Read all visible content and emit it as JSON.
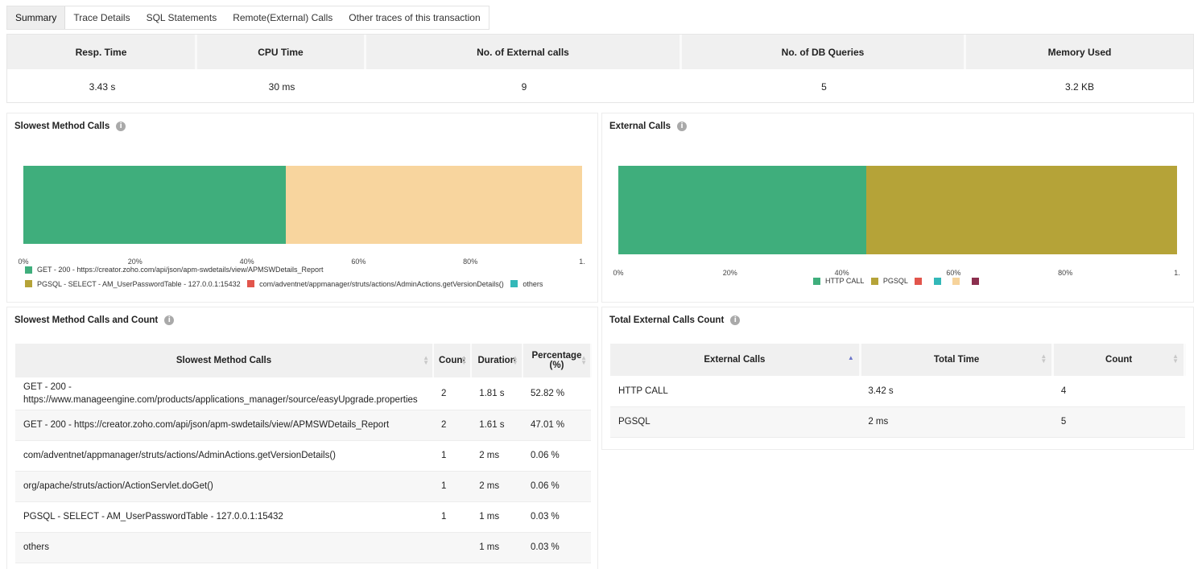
{
  "tabs": [
    {
      "label": "Summary",
      "active": true
    },
    {
      "label": "Trace Details"
    },
    {
      "label": "SQL Statements"
    },
    {
      "label": "Remote(External) Calls"
    },
    {
      "label": "Other traces of this transaction"
    }
  ],
  "summary": {
    "headers": [
      "Resp. Time",
      "CPU Time",
      "No. of External calls",
      "No. of DB Queries",
      "Memory Used"
    ],
    "values": [
      "3.43 s",
      "30 ms",
      "9",
      "5",
      "3.2 KB"
    ]
  },
  "slowest_chart": {
    "title": "Slowest Method Calls",
    "ticks": [
      "0%",
      "20%",
      "40%",
      "60%",
      "80%",
      "1."
    ],
    "legend": [
      {
        "label": "GET - 200 - https://creator.zoho.com/api/json/apm-swdetails/view/APMSWDetails_Report",
        "color": "#3fae7c"
      },
      {
        "label": "PGSQL - SELECT - AM_UserPasswordTable - 127.0.0.1:15432",
        "color": "#b5a338"
      },
      {
        "label": "com/adventnet/appmanager/struts/actions/AdminActions.getVersionDetails()",
        "color": "#e2554c"
      },
      {
        "label": "others",
        "color": "#33b8b8"
      }
    ]
  },
  "external_chart": {
    "title": "External Calls",
    "ticks": [
      "0%",
      "20%",
      "40%",
      "60%",
      "80%",
      "1."
    ],
    "legend": [
      {
        "label": "HTTP CALL",
        "color": "#3fae7c"
      },
      {
        "label": "PGSQL",
        "color": "#b5a338"
      },
      {
        "label": "",
        "color": "#e2554c"
      },
      {
        "label": "",
        "color": "#33b8b8"
      },
      {
        "label": "",
        "color": "#f6d39b"
      },
      {
        "label": "",
        "color": "#8b2f4e"
      }
    ]
  },
  "chart_data": [
    {
      "type": "bar",
      "stacked": true,
      "orientation": "horizontal",
      "title": "Slowest Method Calls",
      "xlim": [
        0,
        1
      ],
      "series": [
        {
          "name": "GET - 200 - https://creator.zoho.com/api/json/apm-swdetails/view/APMSWDetails_Report",
          "values": [
            0.4701
          ]
        },
        {
          "name": "others",
          "values": [
            0.5299
          ]
        }
      ],
      "segment_colors": [
        "#3fae7c",
        "#f8d59e"
      ]
    },
    {
      "type": "bar",
      "stacked": true,
      "orientation": "horizontal",
      "title": "External Calls",
      "xlim": [
        0,
        1
      ],
      "series": [
        {
          "name": "HTTP CALL",
          "values": [
            0.444
          ]
        },
        {
          "name": "PGSQL",
          "values": [
            0.556
          ]
        }
      ],
      "segment_colors": [
        "#3fae7c",
        "#b5a338"
      ]
    }
  ],
  "methods_table": {
    "title": "Slowest Method Calls and Count",
    "headers": [
      "Slowest Method Calls",
      "Count",
      "Duration",
      "Percentage (%)"
    ],
    "rows": [
      {
        "call": "GET - 200 - https://www.manageengine.com/products/applications_manager/source/easyUpgrade.properties",
        "count": "2",
        "duration": "1.81 s",
        "pct": "52.82 %"
      },
      {
        "call": "GET - 200 - https://creator.zoho.com/api/json/apm-swdetails/view/APMSWDetails_Report",
        "count": "2",
        "duration": "1.61 s",
        "pct": "47.01 %"
      },
      {
        "call": "com/adventnet/appmanager/struts/actions/AdminActions.getVersionDetails()",
        "count": "1",
        "duration": "2 ms",
        "pct": "0.06 %"
      },
      {
        "call": "org/apache/struts/action/ActionServlet.doGet()",
        "count": "1",
        "duration": "2 ms",
        "pct": "0.06 %"
      },
      {
        "call": "PGSQL - SELECT - AM_UserPasswordTable - 127.0.0.1:15432",
        "count": "1",
        "duration": "1 ms",
        "pct": "0.03 %"
      },
      {
        "call": "others",
        "count": "",
        "duration": "1 ms",
        "pct": "0.03 %"
      }
    ]
  },
  "external_table": {
    "title": "Total External Calls Count",
    "headers": [
      "External Calls",
      "Total Time",
      "Count"
    ],
    "rows": [
      {
        "name": "HTTP CALL",
        "time": "3.42 s",
        "count": "4"
      },
      {
        "name": "PGSQL",
        "time": "2 ms",
        "count": "5"
      }
    ]
  }
}
